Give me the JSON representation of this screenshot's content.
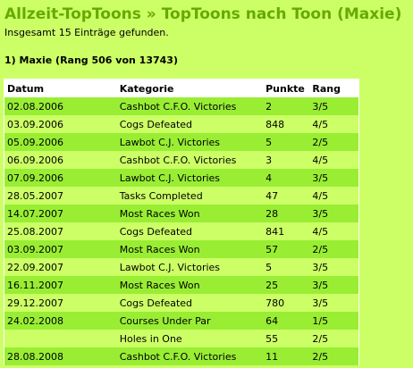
{
  "header": {
    "home_link": "Allzeit-TopToons",
    "separator": "»",
    "title": "TopToons nach Toon (Maxie)"
  },
  "found_text": "Insgesamt 15 Einträge gefunden.",
  "section": {
    "title": "1) Maxie (Rang 506 von 13743)"
  },
  "table": {
    "columns": [
      "Datum",
      "Kategorie",
      "Punkte",
      "Rang"
    ],
    "rows": [
      {
        "date": "02.08.2006",
        "category": "Cashbot C.F.O. Victories",
        "points": "2",
        "rank": "3/5"
      },
      {
        "date": "03.09.2006",
        "category": "Cogs Defeated",
        "points": "848",
        "rank": "4/5"
      },
      {
        "date": "05.09.2006",
        "category": "Lawbot C.J. Victories",
        "points": "5",
        "rank": "2/5"
      },
      {
        "date": "06.09.2006",
        "category": "Cashbot C.F.O. Victories",
        "points": "3",
        "rank": "4/5"
      },
      {
        "date": "07.09.2006",
        "category": "Lawbot C.J. Victories",
        "points": "4",
        "rank": "3/5"
      },
      {
        "date": "28.05.2007",
        "category": "Tasks Completed",
        "points": "47",
        "rank": "4/5"
      },
      {
        "date": "14.07.2007",
        "category": "Most Races Won",
        "points": "28",
        "rank": "3/5"
      },
      {
        "date": "25.08.2007",
        "category": "Cogs Defeated",
        "points": "841",
        "rank": "4/5"
      },
      {
        "date": "03.09.2007",
        "category": "Most Races Won",
        "points": "57",
        "rank": "2/5"
      },
      {
        "date": "22.09.2007",
        "category": "Lawbot C.J. Victories",
        "points": "5",
        "rank": "3/5"
      },
      {
        "date": "16.11.2007",
        "category": "Most Races Won",
        "points": "25",
        "rank": "3/5"
      },
      {
        "date": "29.12.2007",
        "category": "Cogs Defeated",
        "points": "780",
        "rank": "3/5"
      },
      {
        "date": "24.02.2008",
        "category": "Courses Under Par",
        "points": "64",
        "rank": "1/5"
      },
      {
        "date": "",
        "category": "Holes in One",
        "points": "55",
        "rank": "2/5"
      },
      {
        "date": "28.08.2008",
        "category": "Cashbot C.F.O. Victories",
        "points": "11",
        "rank": "2/5"
      }
    ]
  }
}
